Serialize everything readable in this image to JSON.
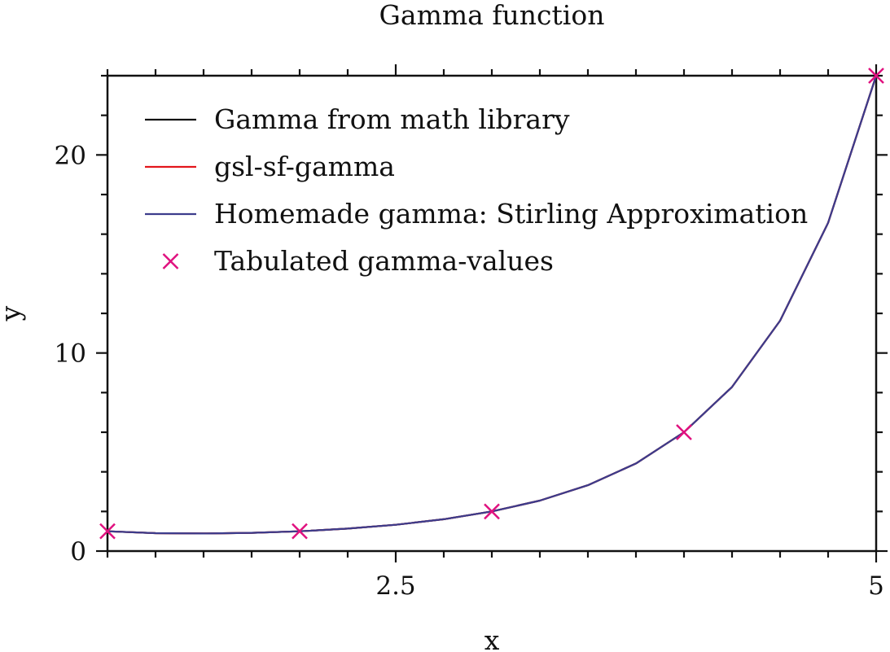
{
  "chart_data": {
    "type": "line",
    "title": "Gamma function",
    "xlabel": "x",
    "ylabel": "y",
    "xlim": [
      1,
      5
    ],
    "ylim": [
      0,
      24
    ],
    "x_ticks": [
      {
        "value": 2.5,
        "label": "2.5"
      },
      {
        "value": 5,
        "label": "5"
      }
    ],
    "y_ticks": [
      {
        "value": 0,
        "label": "0"
      },
      {
        "value": 10,
        "label": "10"
      },
      {
        "value": 20,
        "label": "20"
      }
    ],
    "x_minor_step": 0.25,
    "y_minor_step": 2,
    "legend_position": "top-left",
    "grid": false,
    "series": [
      {
        "name": "Gamma from math library",
        "style": "line",
        "color": "#111111",
        "x": [
          1.0,
          1.25,
          1.5,
          1.75,
          2.0,
          2.25,
          2.5,
          2.75,
          3.0,
          3.25,
          3.5,
          3.75,
          4.0,
          4.25,
          4.5,
          4.75,
          5.0
        ],
        "y": [
          1.0,
          0.906,
          0.886,
          0.919,
          1.0,
          1.133,
          1.329,
          1.608,
          2.0,
          2.549,
          3.323,
          4.423,
          6.0,
          8.285,
          11.632,
          16.576,
          24.0
        ]
      },
      {
        "name": "gsl-sf-gamma",
        "style": "line",
        "color": "#e3161c",
        "x": [
          1.0,
          1.25,
          1.5,
          1.75,
          2.0,
          2.25,
          2.5,
          2.75,
          3.0,
          3.25,
          3.5,
          3.75,
          4.0,
          4.25,
          4.5,
          4.75,
          5.0
        ],
        "y": [
          1.0,
          0.906,
          0.886,
          0.919,
          1.0,
          1.133,
          1.329,
          1.608,
          2.0,
          2.549,
          3.323,
          4.423,
          6.0,
          8.285,
          11.632,
          16.576,
          24.0
        ]
      },
      {
        "name": "Homemade gamma: Stirling Approximation",
        "style": "line",
        "color": "#3c3c8c",
        "x": [
          1.0,
          1.25,
          1.5,
          1.75,
          2.0,
          2.25,
          2.5,
          2.75,
          3.0,
          3.25,
          3.5,
          3.75,
          4.0,
          4.25,
          4.5,
          4.75,
          5.0
        ],
        "y": [
          1.0,
          0.906,
          0.886,
          0.919,
          1.0,
          1.133,
          1.329,
          1.608,
          2.0,
          2.549,
          3.323,
          4.423,
          6.0,
          8.285,
          11.632,
          16.576,
          24.0
        ]
      },
      {
        "name": "Tabulated gamma-values",
        "style": "marker",
        "marker": "x",
        "color": "#e0117f",
        "x": [
          1,
          2,
          3,
          4,
          5
        ],
        "y": [
          1,
          1,
          2,
          6,
          24
        ]
      }
    ]
  }
}
